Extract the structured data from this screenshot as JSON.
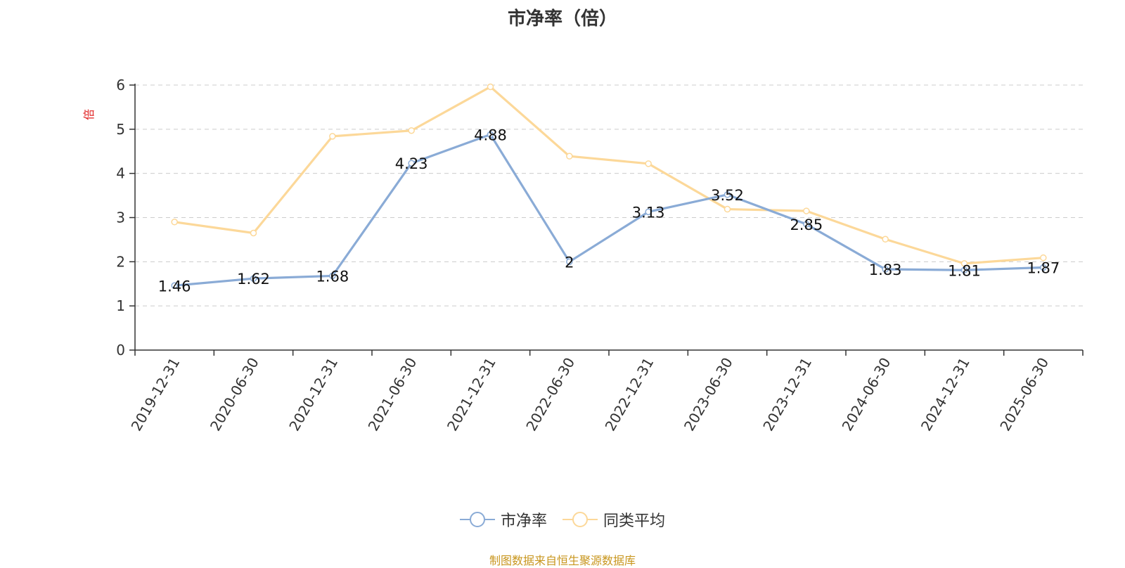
{
  "chart_data": {
    "type": "line",
    "title": "市净率（倍）",
    "ylabel": "倍",
    "ylim": [
      0,
      6
    ],
    "yticks": [
      0,
      1,
      2,
      3,
      4,
      5,
      6
    ],
    "grid": true,
    "legend_placement": "bottom",
    "categories": [
      "2019-12-31",
      "2020-06-30",
      "2020-12-31",
      "2021-06-30",
      "2021-12-31",
      "2022-06-30",
      "2022-12-31",
      "2023-06-30",
      "2023-12-31",
      "2024-06-30",
      "2024-12-31",
      "2025-06-30"
    ],
    "series": [
      {
        "name": "市净率",
        "color": "#8aabd6",
        "show_labels": true,
        "values": [
          1.46,
          1.62,
          1.68,
          4.23,
          4.88,
          2,
          3.13,
          3.52,
          2.85,
          1.83,
          1.81,
          1.87
        ]
      },
      {
        "name": "同类平均",
        "color": "#fcd899",
        "show_labels": false,
        "values": [
          2.9,
          2.65,
          4.84,
          4.97,
          5.96,
          4.39,
          4.22,
          3.19,
          3.15,
          2.51,
          1.96,
          2.09
        ]
      }
    ]
  },
  "legend": {
    "items": [
      {
        "label": "市净率",
        "color": "#8aabd6"
      },
      {
        "label": "同类平均",
        "color": "#fcd899"
      }
    ]
  },
  "source_note": "制图数据来自恒生聚源数据库",
  "colors": {
    "ylabel": "#e02020",
    "source_note": "#c8961e",
    "axis": "#333333",
    "grid": "#cccccc"
  }
}
